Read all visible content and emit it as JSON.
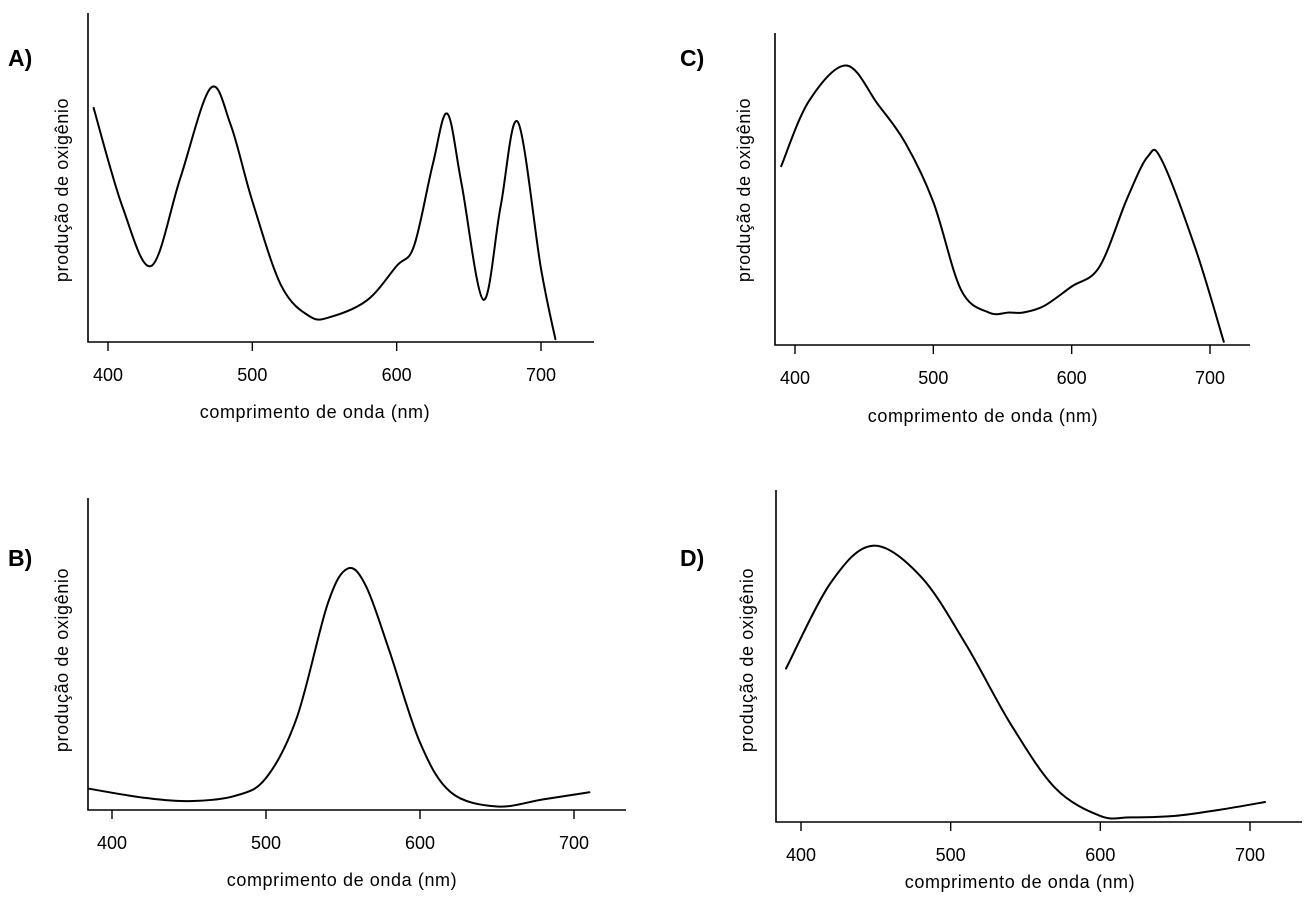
{
  "chart_data": [
    {
      "panel": "A)",
      "type": "line",
      "xlabel": "comprimento de onda (nm)",
      "ylabel": "produção de oxigênio",
      "xticks": [
        400,
        500,
        600,
        700
      ],
      "xlim": [
        385,
        735
      ],
      "ylim": [
        0,
        100
      ],
      "grid": false,
      "series": [
        {
          "x": [
            390,
            410,
            430,
            450,
            471,
            485,
            500,
            520,
            540,
            555,
            580,
            600,
            612,
            625,
            635,
            645,
            660,
            672,
            684,
            700,
            710
          ],
          "y": [
            83,
            48,
            27,
            58,
            90,
            77,
            50,
            20,
            9,
            9,
            15,
            27,
            34,
            63,
            81,
            56,
            15,
            48,
            78,
            26,
            1
          ]
        }
      ]
    },
    {
      "panel": "B)",
      "type": "line",
      "xlabel": "comprimento de onda (nm)",
      "ylabel": "produção de oxigênio",
      "xticks": [
        400,
        500,
        600,
        700
      ],
      "xlim": [
        385,
        735
      ],
      "ylim": [
        0,
        100
      ],
      "grid": false,
      "series": [
        {
          "x": [
            385,
            420,
            450,
            480,
            500,
            520,
            540,
            553,
            565,
            580,
            600,
            620,
            650,
            680,
            710
          ],
          "y": [
            6,
            3.5,
            2.5,
            4,
            9,
            26,
            58,
            68,
            63,
            45,
            19,
            5,
            1,
            3,
            5
          ]
        }
      ]
    },
    {
      "panel": "C)",
      "type": "line",
      "xlabel": "comprimento de onda (nm)",
      "ylabel": "produção de oxigênio",
      "xticks": [
        400,
        500,
        600,
        700
      ],
      "xlim": [
        385,
        735
      ],
      "ylim": [
        0,
        100
      ],
      "grid": false,
      "series": [
        {
          "x": [
            390,
            410,
            437,
            460,
            480,
            500,
            520,
            540,
            555,
            565,
            580,
            600,
            620,
            640,
            655,
            665,
            690,
            710
          ],
          "y": [
            55,
            75,
            86,
            74,
            62,
            44,
            17,
            10,
            10,
            10,
            12,
            18,
            24,
            45,
            58,
            57,
            29,
            1
          ]
        }
      ]
    },
    {
      "panel": "D)",
      "type": "line",
      "xlabel": "comprimento de onda (nm)",
      "ylabel": "produção de oxigênio",
      "xticks": [
        400,
        500,
        600,
        700
      ],
      "xlim": [
        385,
        735
      ],
      "ylim": [
        0,
        100
      ],
      "grid": false,
      "series": [
        {
          "x": [
            390,
            420,
            448,
            480,
            510,
            540,
            570,
            600,
            620,
            650,
            680,
            710
          ],
          "y": [
            50,
            78,
            90,
            80,
            58,
            32,
            11,
            2,
            1.5,
            2,
            4,
            6.5
          ]
        }
      ]
    }
  ]
}
